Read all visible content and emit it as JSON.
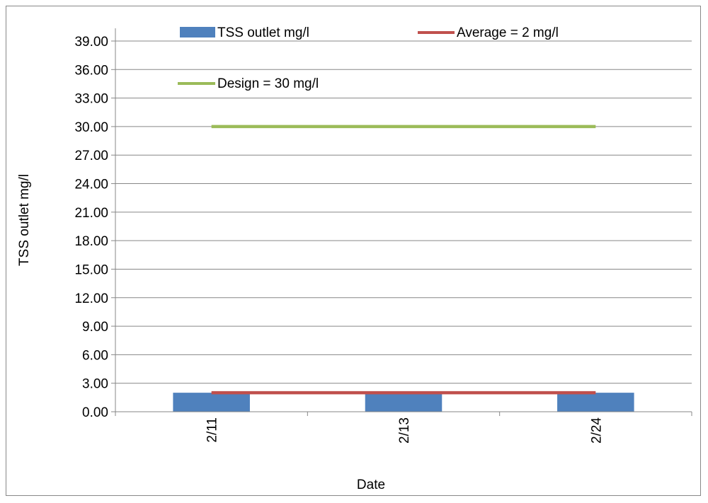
{
  "chart_data": {
    "type": "bar",
    "categories": [
      "2/11",
      "2/13",
      "2/24"
    ],
    "series": [
      {
        "name": "TSS outlet mg/l",
        "kind": "bar",
        "values": [
          2,
          2,
          2
        ],
        "color": "#4F81BD"
      },
      {
        "name": "Average = 2 mg/l",
        "kind": "line",
        "values": [
          2,
          2,
          2
        ],
        "color": "#C0504D"
      },
      {
        "name": "Design = 30 mg/l",
        "kind": "line",
        "values": [
          30,
          30,
          30
        ],
        "color": "#9BBB59"
      }
    ],
    "xlabel": "Date",
    "ylabel": "TSS outlet mg/l",
    "ylim": [
      0,
      39
    ],
    "yticks": [
      "0.00",
      "3.00",
      "6.00",
      "9.00",
      "12.00",
      "15.00",
      "18.00",
      "21.00",
      "24.00",
      "27.00",
      "30.00",
      "33.00",
      "36.00",
      "39.00"
    ],
    "grid": true,
    "legend_position": "top"
  }
}
